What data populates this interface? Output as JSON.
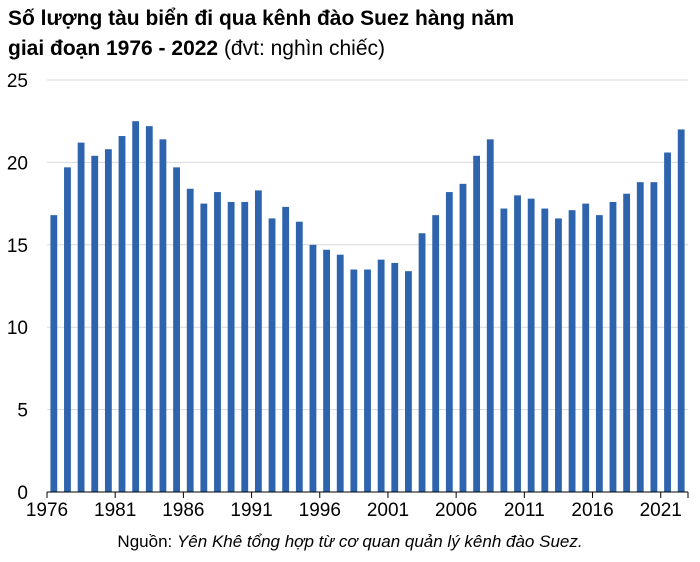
{
  "title": {
    "line1": "Số lượng tàu biển đi qua kênh đào Suez hàng năm",
    "line2_bold": "giai đoạn 1976 - 2022",
    "line2_normal": " (đvt: nghìn chiếc)"
  },
  "source": {
    "label": "Nguồn: ",
    "text": "Yên Khê tổng hợp từ cơ quan quản lý kênh đào Suez."
  },
  "colors": {
    "bar": "#2E63AE",
    "grid": "#D9D9D9",
    "axis": "#000000"
  },
  "chart_data": {
    "type": "bar",
    "x": [
      1976,
      1977,
      1978,
      1979,
      1980,
      1981,
      1982,
      1983,
      1984,
      1985,
      1986,
      1987,
      1988,
      1989,
      1990,
      1991,
      1992,
      1993,
      1994,
      1995,
      1996,
      1997,
      1998,
      1999,
      2000,
      2001,
      2002,
      2003,
      2004,
      2005,
      2006,
      2007,
      2008,
      2009,
      2010,
      2011,
      2012,
      2013,
      2014,
      2015,
      2016,
      2017,
      2018,
      2019,
      2020,
      2021,
      2022
    ],
    "values": [
      16.8,
      19.7,
      21.2,
      20.4,
      20.8,
      21.6,
      22.5,
      22.2,
      21.4,
      19.7,
      18.4,
      17.5,
      18.2,
      17.6,
      17.6,
      18.3,
      16.6,
      17.3,
      16.4,
      15.0,
      14.7,
      14.4,
      13.5,
      13.5,
      14.1,
      13.9,
      13.4,
      15.7,
      16.8,
      18.2,
      18.7,
      20.4,
      21.4,
      17.2,
      18.0,
      17.8,
      17.2,
      16.6,
      17.1,
      17.5,
      16.8,
      17.6,
      18.1,
      18.8,
      18.8,
      20.6,
      22.0
    ],
    "x_tick_labels": [
      "1976",
      "1981",
      "1986",
      "1991",
      "1996",
      "2001",
      "2006",
      "2011",
      "2016",
      "2021"
    ],
    "y_ticks": [
      0,
      5,
      10,
      15,
      20,
      25
    ],
    "ylim": [
      0,
      25
    ],
    "grid": true,
    "legend": "none"
  }
}
